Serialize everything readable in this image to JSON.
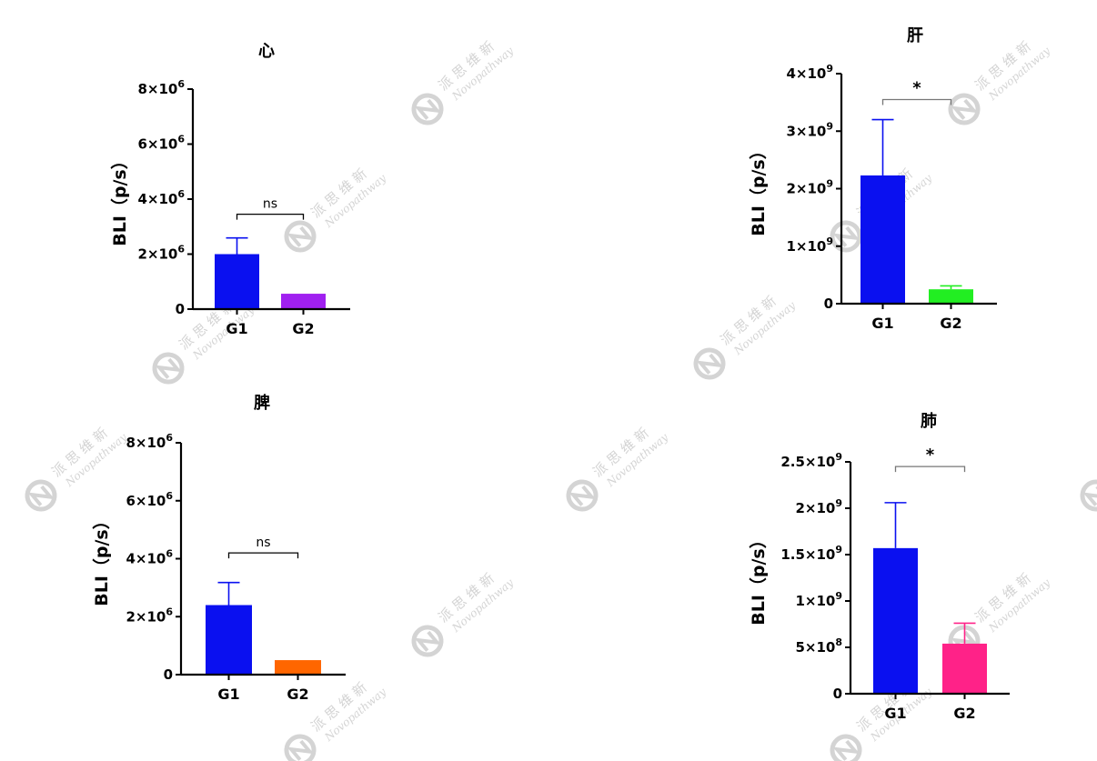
{
  "watermark": {
    "cn": "派 思 维 新",
    "en": "Novopathway",
    "color": "#d4d4d4",
    "icon": "novopathway-logo-icon"
  },
  "colors": {
    "g1": "#0a10f0",
    "axis": "#000000",
    "bracket": "#555555"
  },
  "chart_data": [
    {
      "id": "heart",
      "type": "bar",
      "title": "心",
      "ylabel": "BLI（p/s）",
      "categories": [
        "G1",
        "G2"
      ],
      "values": [
        2000000,
        560000
      ],
      "errors": [
        590000,
        0
      ],
      "colors": [
        "#0a10f0",
        "#a020f0"
      ],
      "ylim": [
        0,
        8000000
      ],
      "yticks": [
        0,
        2000000,
        4000000,
        6000000,
        8000000
      ],
      "ytick_labels": [
        {
          "m": "0",
          "e": ""
        },
        {
          "m": "2×10",
          "e": "6"
        },
        {
          "m": "4×10",
          "e": "6"
        },
        {
          "m": "6×10",
          "e": "6"
        },
        {
          "m": "8×10",
          "e": "6"
        }
      ],
      "significance": {
        "label": "ns",
        "level": 3450000
      },
      "grid": false
    },
    {
      "id": "liver",
      "type": "bar",
      "title": "肝",
      "ylabel": "BLI（p/s）",
      "categories": [
        "G1",
        "G2"
      ],
      "values": [
        2230000000,
        250000000
      ],
      "errors": [
        970000000,
        60000000
      ],
      "colors": [
        "#0a10f0",
        "#22ee22"
      ],
      "ylim": [
        0,
        4000000000
      ],
      "yticks": [
        0,
        1000000000,
        2000000000,
        3000000000,
        4000000000
      ],
      "ytick_labels": [
        {
          "m": "0",
          "e": ""
        },
        {
          "m": "1×10",
          "e": "9"
        },
        {
          "m": "2×10",
          "e": "9"
        },
        {
          "m": "3×10",
          "e": "9"
        },
        {
          "m": "4×10",
          "e": "9"
        }
      ],
      "significance": {
        "label": "*",
        "level": 3550000000
      },
      "grid": false
    },
    {
      "id": "spleen",
      "type": "bar",
      "title": "脾",
      "ylabel": "BLI（p/s）",
      "categories": [
        "G1",
        "G2"
      ],
      "values": [
        2400000,
        500000
      ],
      "errors": [
        780000,
        0
      ],
      "colors": [
        "#0a10f0",
        "#ff6600"
      ],
      "ylim": [
        0,
        8000000
      ],
      "yticks": [
        0,
        2000000,
        4000000,
        6000000,
        8000000
      ],
      "ytick_labels": [
        {
          "m": "0",
          "e": ""
        },
        {
          "m": "2×10",
          "e": "6"
        },
        {
          "m": "4×10",
          "e": "6"
        },
        {
          "m": "6×10",
          "e": "6"
        },
        {
          "m": "8×10",
          "e": "6"
        }
      ],
      "significance": {
        "label": "ns",
        "level": 4200000
      },
      "grid": false
    },
    {
      "id": "lung",
      "type": "bar",
      "title": "肺",
      "ylabel": "BLI（p/s）",
      "categories": [
        "G1",
        "G2"
      ],
      "values": [
        1570000000,
        540000000
      ],
      "errors": [
        490000000,
        220000000
      ],
      "colors": [
        "#0a10f0",
        "#ff2288"
      ],
      "ylim": [
        0,
        2500000000
      ],
      "yticks": [
        0,
        500000000,
        1000000000,
        1500000000,
        2000000000,
        2500000000
      ],
      "ytick_labels": [
        {
          "m": "0",
          "e": ""
        },
        {
          "m": "5×10",
          "e": "8"
        },
        {
          "m": "1×10",
          "e": "9"
        },
        {
          "m": "1.5×10",
          "e": "9"
        },
        {
          "m": "2×10",
          "e": "9"
        },
        {
          "m": "2.5×10",
          "e": "9"
        }
      ],
      "significance": {
        "label": "*",
        "level": 2450000000
      },
      "grid": false
    }
  ]
}
